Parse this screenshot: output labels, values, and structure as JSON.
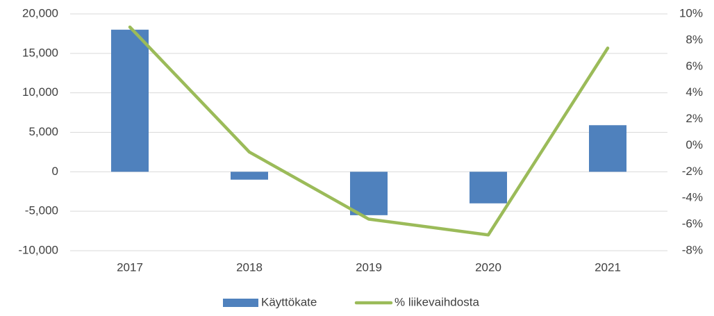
{
  "chart_data": {
    "type": "bar_line",
    "categories": [
      "2017",
      "2018",
      "2019",
      "2020",
      "2021"
    ],
    "series": [
      {
        "name": "Käyttökate",
        "color": "#4f81bd",
        "type": "bar",
        "values": [
          18000,
          -1000,
          -5500,
          -4000,
          5900
        ]
      },
      {
        "name": "% liikevaihdosta",
        "color": "#9bbb59",
        "type": "line",
        "axis": "y2",
        "values": [
          9.0,
          -0.5,
          -5.6,
          -6.8,
          7.4
        ]
      }
    ],
    "ylim": [
      -10000,
      20000
    ],
    "yticks": [
      {
        "value": -10000,
        "label": "-10,000"
      },
      {
        "value": -5000,
        "label": "-5,000"
      },
      0,
      {
        "value": 5000,
        "label": "5,000"
      },
      {
        "value": 10000,
        "label": "10,000"
      },
      {
        "value": 15000,
        "label": "15,000"
      },
      {
        "value": 20000,
        "label": "20,000"
      }
    ],
    "y2lim": [
      -8,
      10
    ],
    "y2ticks": [
      {
        "value": -8,
        "label": "-8%"
      },
      {
        "value": -6,
        "label": "-6%"
      },
      {
        "value": -4,
        "label": "-4%"
      },
      {
        "value": -2,
        "label": "-2%"
      },
      {
        "value": 0,
        "label": "0%"
      },
      {
        "value": 2,
        "label": "2%"
      },
      {
        "value": 4,
        "label": "4%"
      },
      {
        "value": 6,
        "label": "6%"
      },
      {
        "value": 8,
        "label": "8%"
      },
      {
        "value": 10,
        "label": "10%"
      }
    ],
    "grid": true,
    "legend": "bottom"
  }
}
